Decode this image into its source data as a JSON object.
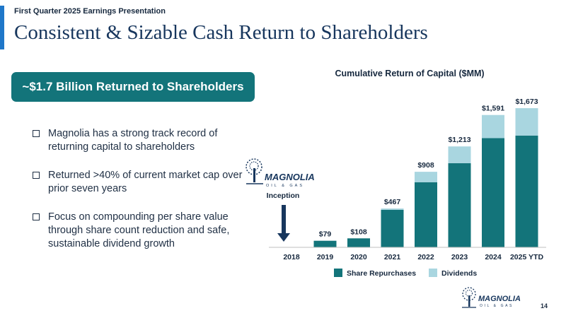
{
  "header": {
    "eyebrow": "First Quarter 2025 Earnings Presentation",
    "title": "Consistent & Sizable Cash Return to Shareholders"
  },
  "callout": "~$1.7 Billion Returned to Shareholders",
  "bullets": [
    "Magnolia has a strong track record of returning capital to shareholders",
    "Returned >40% of current market cap over prior seven years",
    "Focus on compounding per share value through share count reduction and safe, sustainable dividend growth"
  ],
  "logo": {
    "name": "MAGNOLIA",
    "sub": "OIL & GAS"
  },
  "inception_label": "Inception",
  "page_number": "14",
  "colors": {
    "repurchases": "#13747a",
    "dividends": "#a9d6e0",
    "title": "#17365d"
  },
  "chart_data": {
    "type": "bar",
    "stacked": true,
    "title": "Cumulative Return of Capital ($MM)",
    "categories": [
      "2018",
      "2019",
      "2020",
      "2021",
      "2022",
      "2023",
      "2024",
      "2025 YTD"
    ],
    "series": [
      {
        "name": "Share Repurchases",
        "values": [
          0,
          79,
          108,
          451,
          783,
          1012,
          1313,
          1344
        ]
      },
      {
        "name": "Dividends",
        "values": [
          0,
          0,
          0,
          16,
          125,
          201,
          278,
          329
        ]
      }
    ],
    "totals": [
      "",
      "$79",
      "$108",
      "$467",
      "$908",
      "$1,213",
      "$1,591",
      "$1,673"
    ],
    "ylim": [
      0,
      1750
    ],
    "grid": false,
    "legend": "bottom"
  }
}
